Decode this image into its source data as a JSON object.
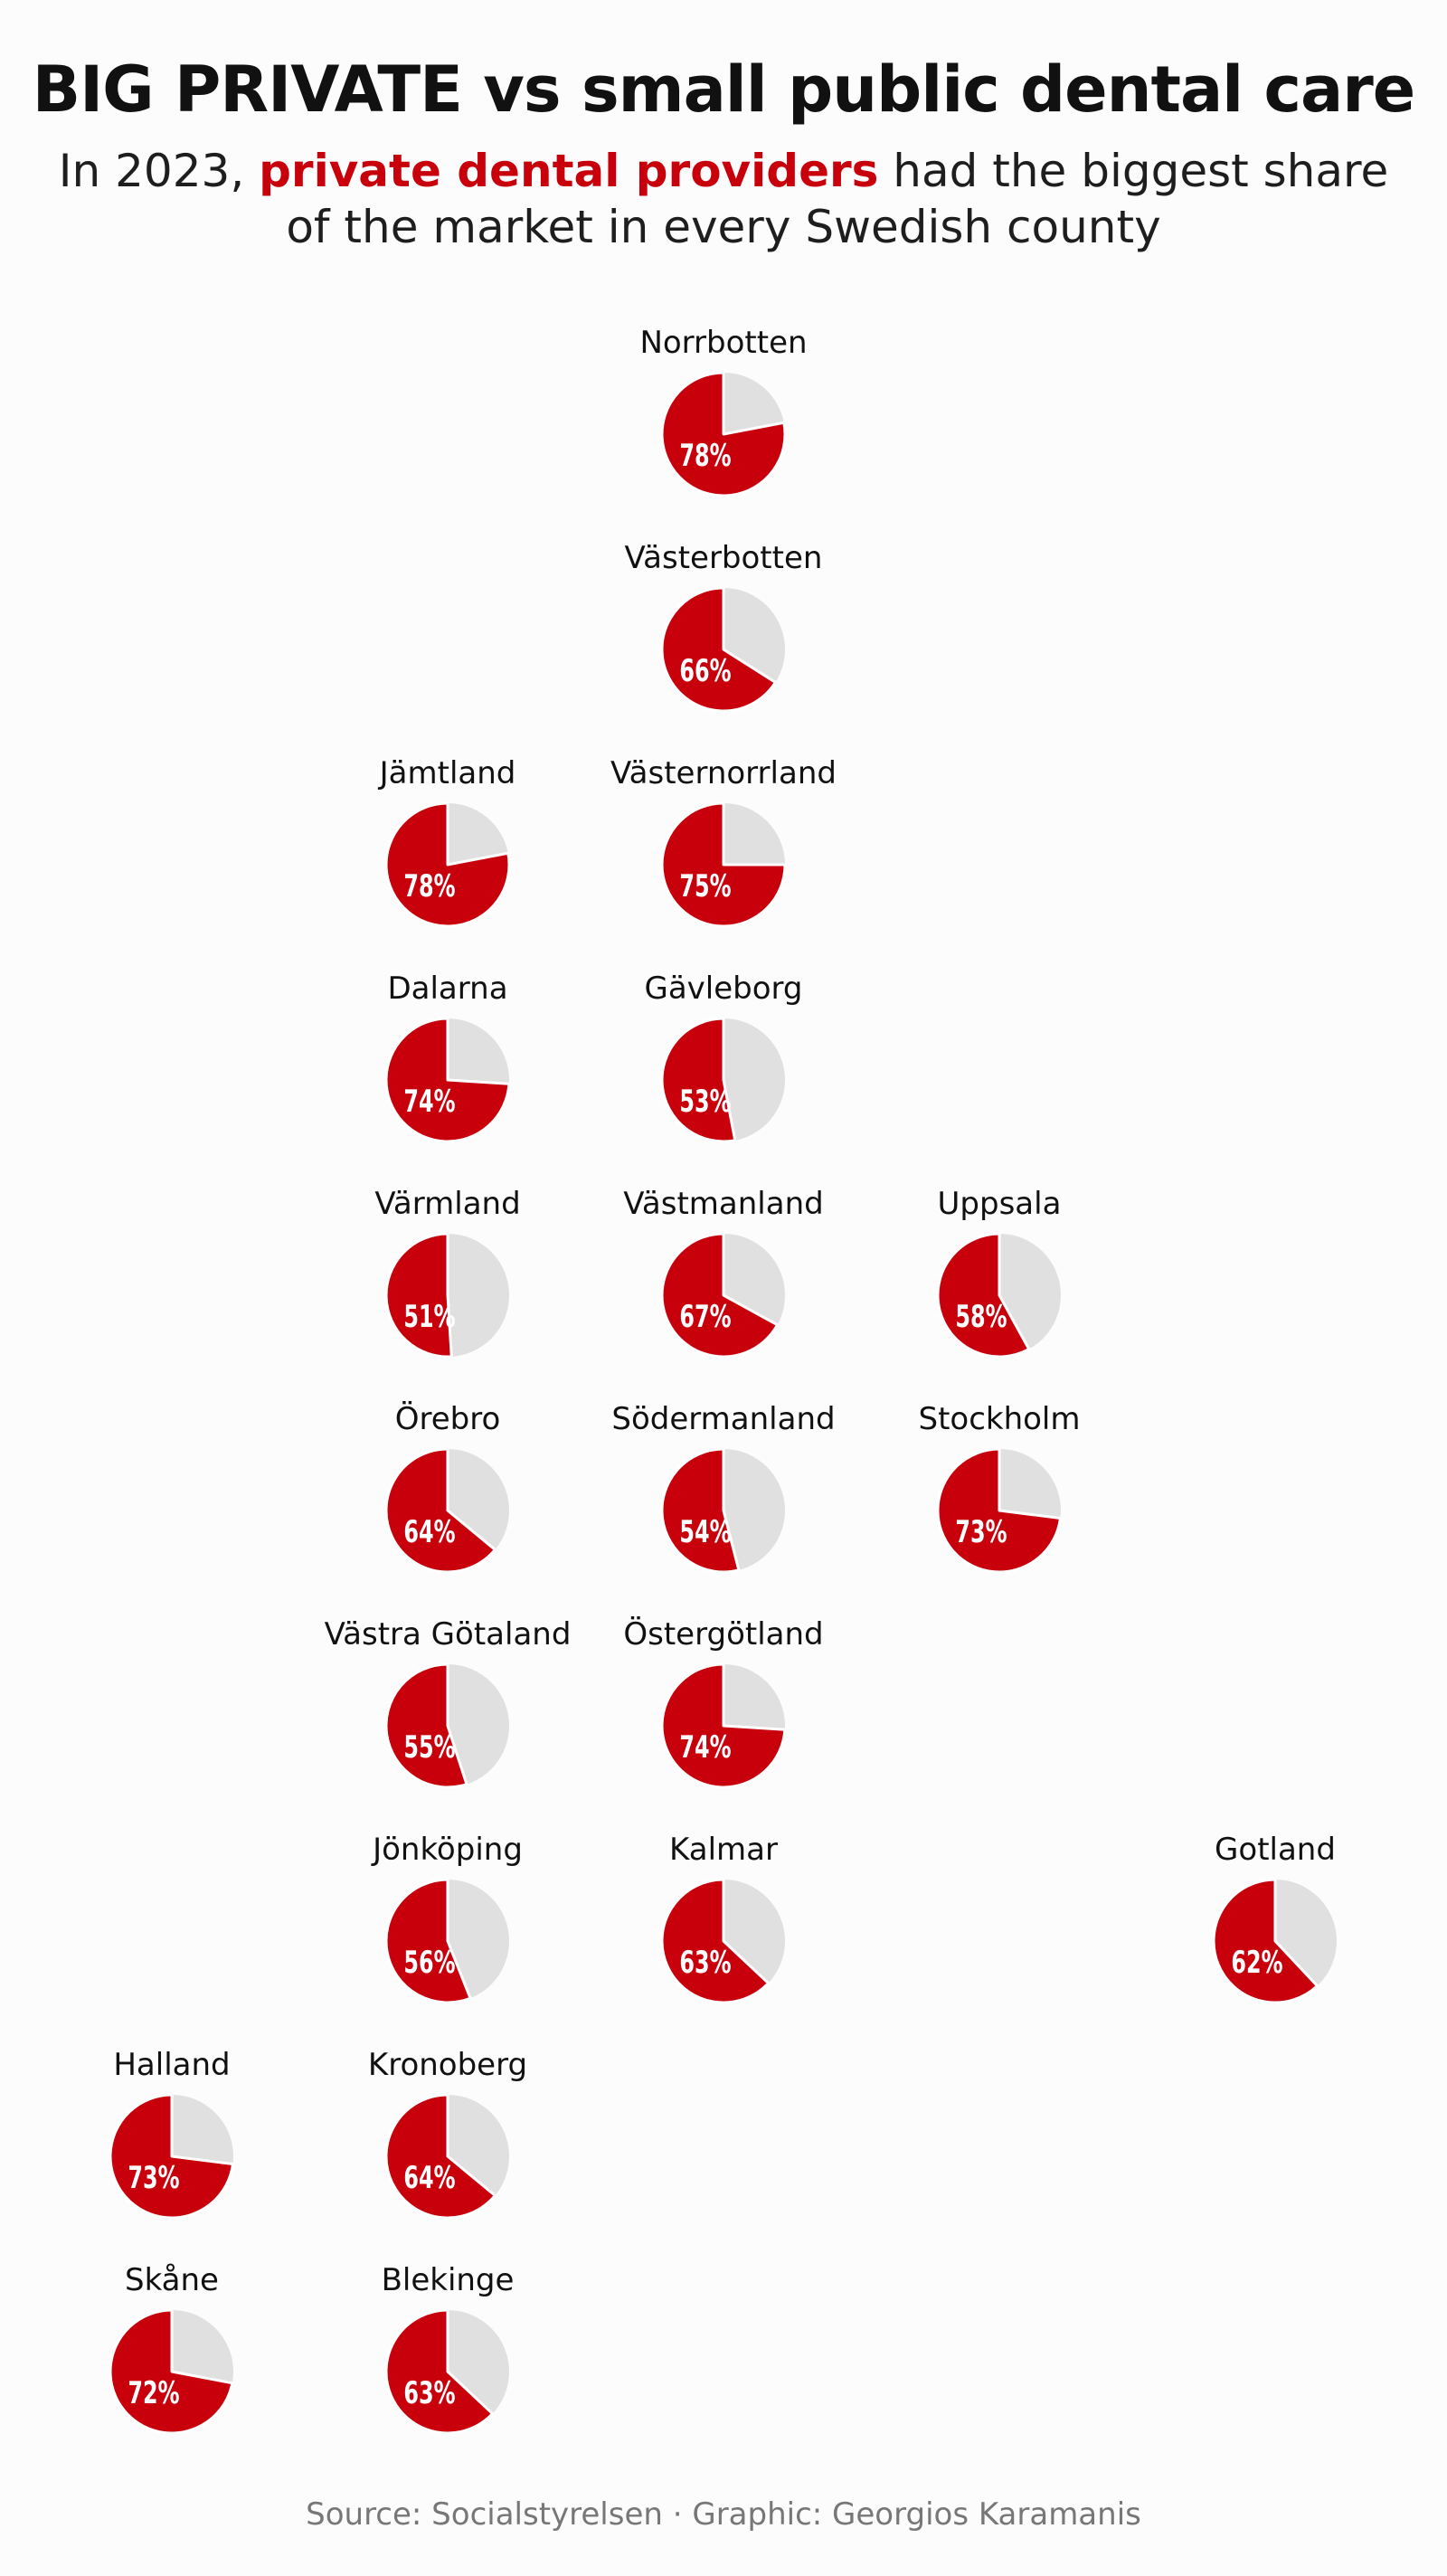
{
  "title": "BIG PRIVATE vs small public dental care",
  "subtitle": {
    "prefix": "In 2023, ",
    "highlight": "private dental providers",
    "suffix_line1": " had the biggest share",
    "line2": "of the market in every Swedish county"
  },
  "source": "Source: Socialstyrelsen · Graphic: Georgios Karamanis",
  "colors": {
    "private": "#c8000b",
    "public": "#e0e0e0",
    "text": "#111111",
    "source": "#777777",
    "background": "#fcfcfc"
  },
  "chart_data": {
    "type": "pie",
    "title": "BIG PRIVATE vs small public dental care",
    "series": [
      {
        "name": "private dental providers"
      }
    ],
    "counties": [
      {
        "name": "Norrbotten",
        "private_share": 78,
        "label": "78%",
        "col": 2,
        "row": 0
      },
      {
        "name": "Västerbotten",
        "private_share": 66,
        "label": "66%",
        "col": 2,
        "row": 1
      },
      {
        "name": "Jämtland",
        "private_share": 78,
        "label": "78%",
        "col": 1,
        "row": 2
      },
      {
        "name": "Västernorrland",
        "private_share": 75,
        "label": "75%",
        "col": 2,
        "row": 2
      },
      {
        "name": "Dalarna",
        "private_share": 74,
        "label": "74%",
        "col": 1,
        "row": 3
      },
      {
        "name": "Gävleborg",
        "private_share": 53,
        "label": "53%",
        "col": 2,
        "row": 3
      },
      {
        "name": "Värmland",
        "private_share": 51,
        "label": "51%",
        "col": 1,
        "row": 4
      },
      {
        "name": "Västmanland",
        "private_share": 67,
        "label": "67%",
        "col": 2,
        "row": 4
      },
      {
        "name": "Uppsala",
        "private_share": 58,
        "label": "58%",
        "col": 3,
        "row": 4
      },
      {
        "name": "Örebro",
        "private_share": 64,
        "label": "64%",
        "col": 1,
        "row": 5
      },
      {
        "name": "Södermanland",
        "private_share": 54,
        "label": "54%",
        "col": 2,
        "row": 5
      },
      {
        "name": "Stockholm",
        "private_share": 73,
        "label": "73%",
        "col": 3,
        "row": 5
      },
      {
        "name": "Västra Götaland",
        "private_share": 55,
        "label": "55%",
        "col": 1,
        "row": 6
      },
      {
        "name": "Östergötland",
        "private_share": 74,
        "label": "74%",
        "col": 2,
        "row": 6
      },
      {
        "name": "Jönköping",
        "private_share": 56,
        "label": "56%",
        "col": 1,
        "row": 7
      },
      {
        "name": "Kalmar",
        "private_share": 63,
        "label": "63%",
        "col": 2,
        "row": 7
      },
      {
        "name": "Gotland",
        "private_share": 62,
        "label": "62%",
        "col": 4,
        "row": 7
      },
      {
        "name": "Halland",
        "private_share": 73,
        "label": "73%",
        "col": 0,
        "row": 8
      },
      {
        "name": "Kronoberg",
        "private_share": 64,
        "label": "64%",
        "col": 1,
        "row": 8
      },
      {
        "name": "Skåne",
        "private_share": 72,
        "label": "72%",
        "col": 0,
        "row": 9
      },
      {
        "name": "Blekinge",
        "private_share": 63,
        "label": "63%",
        "col": 1,
        "row": 9
      }
    ]
  }
}
